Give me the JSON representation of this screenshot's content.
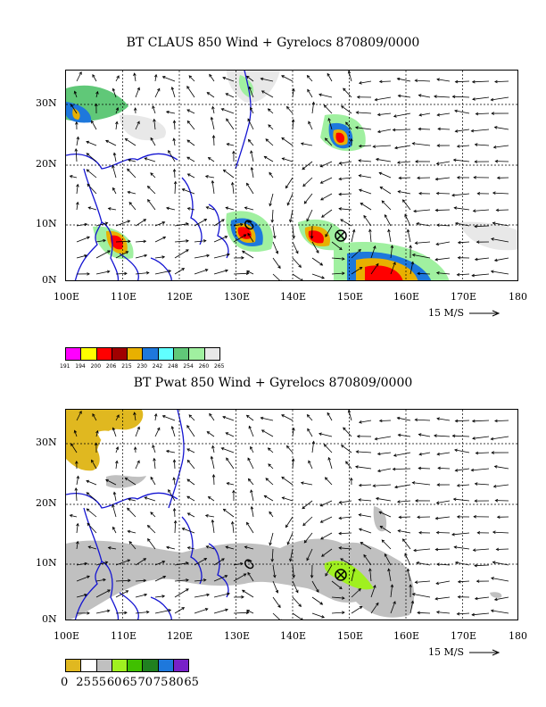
{
  "panels": [
    {
      "title": "BT CLAUS 850 Wind + Gyrelocs 870809/0000",
      "lat_labels": [
        "30N",
        "20N",
        "10N",
        "0N"
      ],
      "lon_labels": [
        "100E",
        "110E",
        "120E",
        "130E",
        "140E",
        "150E",
        "160E",
        "170E",
        "180"
      ],
      "scale_label": "15 M/S",
      "legend": {
        "colors": [
          "#ff00ff",
          "#ffff00",
          "#ff0000",
          "#a00000",
          "#e8b000",
          "#1e78dc",
          "#60ffff",
          "#60c878",
          "#a0f0a0",
          "#e8e8e8"
        ],
        "labels": [
          "191",
          "194",
          "200",
          "206",
          "215",
          "230",
          "242",
          "248",
          "254",
          "260",
          "265"
        ]
      }
    },
    {
      "title": "BT Pwat 850 Wind + Gyrelocs 870809/0000",
      "lat_labels": [
        "30N",
        "20N",
        "10N",
        "0N"
      ],
      "lon_labels": [
        "100E",
        "110E",
        "120E",
        "130E",
        "140E",
        "150E",
        "160E",
        "170E",
        "180"
      ],
      "scale_label": "15 M/S",
      "legend": {
        "colors": [
          "#e0b820",
          "#ffffff",
          "#c0c0c0",
          "#a0f020",
          "#40c000",
          "#208020",
          "#1e78dc",
          "#7820c8"
        ],
        "labels": [
          "0",
          "25",
          "55",
          "60",
          "65",
          "70",
          "75",
          "80",
          "65"
        ]
      }
    }
  ]
}
